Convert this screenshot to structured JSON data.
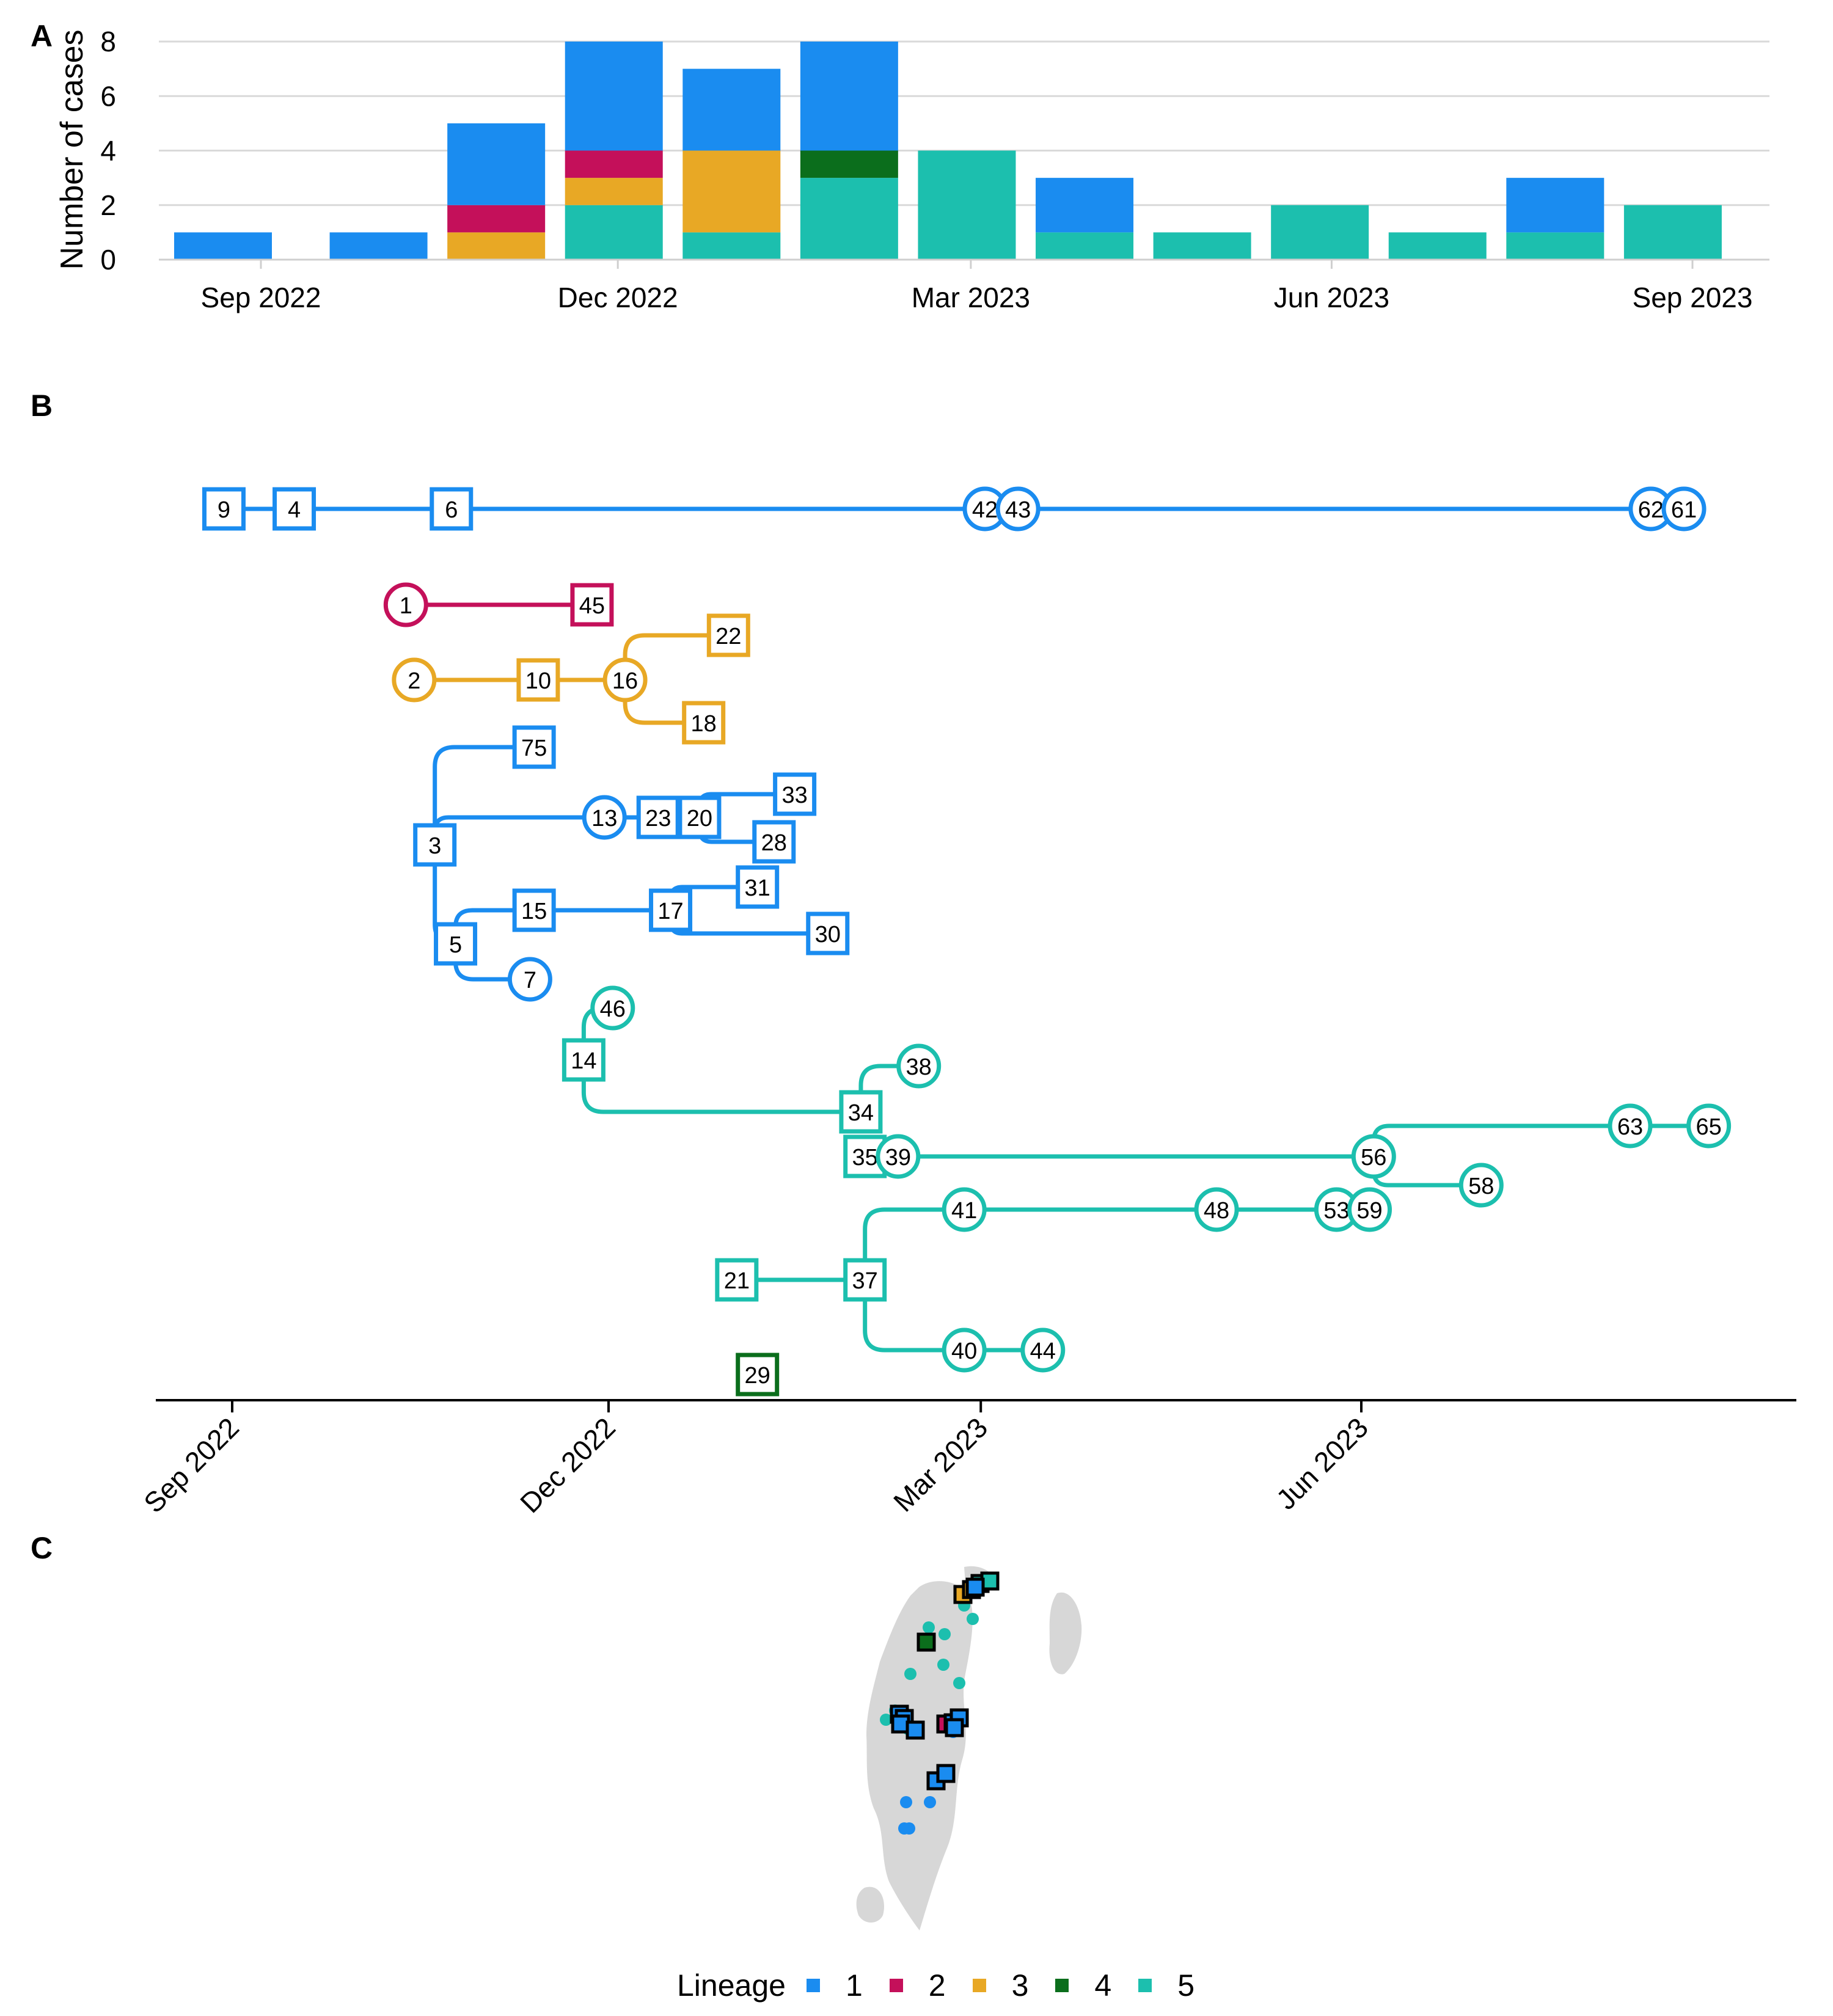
{
  "panels": {
    "a": "A",
    "b": "B",
    "c": "C"
  },
  "colors": {
    "lineage_1": "#1a8cf0",
    "lineage_2": "#c4105a",
    "lineage_3": "#e8a825",
    "lineage_4": "#0b6e1c",
    "lineage_5": "#1cbfae",
    "land": "#d7d7d7",
    "grid": "#d9d9d9"
  },
  "chart_data": [
    {
      "type": "bar",
      "stacked": true,
      "ylabel": "Number of cases",
      "ylim": [
        0,
        8
      ],
      "yticks": [
        "0",
        "2",
        "4",
        "6",
        "8"
      ],
      "xtick_labels": [
        "Sep 2022",
        "Dec 2022",
        "Mar 2023",
        "Jun 2023",
        "Sep 2023"
      ],
      "categories": [
        "2022-09-01",
        "2022-10-01",
        "2022-10-31",
        "2022-11-30",
        "2022-12-30",
        "2023-01-29",
        "2023-02-28",
        "2023-03-30",
        "2023-04-29",
        "2023-05-29",
        "2023-06-28",
        "2023-07-28",
        "2023-08-27"
      ],
      "series": [
        {
          "lineage": "5",
          "values": [
            0,
            0,
            0,
            2,
            1,
            3,
            4,
            1,
            1,
            2,
            1,
            1,
            2
          ]
        },
        {
          "lineage": "4",
          "values": [
            0,
            0,
            0,
            0,
            0,
            1,
            0,
            0,
            0,
            0,
            0,
            0,
            0
          ]
        },
        {
          "lineage": "3",
          "values": [
            0,
            0,
            1,
            1,
            3,
            0,
            0,
            0,
            0,
            0,
            0,
            0,
            0
          ]
        },
        {
          "lineage": "2",
          "values": [
            0,
            0,
            1,
            1,
            0,
            0,
            0,
            0,
            0,
            0,
            0,
            0,
            0
          ]
        },
        {
          "lineage": "1",
          "values": [
            1,
            1,
            3,
            4,
            3,
            4,
            0,
            2,
            0,
            0,
            0,
            2,
            0
          ]
        }
      ],
      "grid": true
    },
    {
      "type": "transmission-tree",
      "xtick_labels": [
        "Sep 2022",
        "Dec 2022",
        "Mar 2023",
        "Jun 2023"
      ],
      "nodes": [
        {
          "id": "9",
          "date": "2022-08-30",
          "lineage": 1,
          "shape": "square"
        },
        {
          "id": "4",
          "date": "2022-09-16",
          "lineage": 1,
          "shape": "square"
        },
        {
          "id": "6",
          "date": "2022-10-24",
          "lineage": 1,
          "shape": "square"
        },
        {
          "id": "42",
          "date": "2023-03-02",
          "lineage": 1,
          "shape": "circle"
        },
        {
          "id": "43",
          "date": "2023-03-10",
          "lineage": 1,
          "shape": "circle"
        },
        {
          "id": "62",
          "date": "2023-08-10",
          "lineage": 1,
          "shape": "circle"
        },
        {
          "id": "61",
          "date": "2023-08-18",
          "lineage": 1,
          "shape": "circle"
        },
        {
          "id": "1",
          "date": "2022-10-13",
          "lineage": 2,
          "shape": "circle"
        },
        {
          "id": "45",
          "date": "2022-11-27",
          "lineage": 2,
          "shape": "square"
        },
        {
          "id": "2",
          "date": "2022-10-15",
          "lineage": 3,
          "shape": "circle"
        },
        {
          "id": "10",
          "date": "2022-11-14",
          "lineage": 3,
          "shape": "square"
        },
        {
          "id": "16",
          "date": "2022-12-05",
          "lineage": 3,
          "shape": "circle"
        },
        {
          "id": "22",
          "date": "2022-12-30",
          "lineage": 3,
          "shape": "square"
        },
        {
          "id": "18",
          "date": "2022-12-24",
          "lineage": 3,
          "shape": "square"
        },
        {
          "id": "3",
          "date": "2022-10-20",
          "lineage": 1,
          "shape": "square"
        },
        {
          "id": "75",
          "date": "2022-11-13",
          "lineage": 1,
          "shape": "square"
        },
        {
          "id": "13",
          "date": "2022-11-30",
          "lineage": 1,
          "shape": "circle"
        },
        {
          "id": "23",
          "date": "2022-12-13",
          "lineage": 1,
          "shape": "square"
        },
        {
          "id": "20",
          "date": "2022-12-23",
          "lineage": 1,
          "shape": "square"
        },
        {
          "id": "33",
          "date": "2023-01-15",
          "lineage": 1,
          "shape": "square"
        },
        {
          "id": "28",
          "date": "2023-01-10",
          "lineage": 1,
          "shape": "square"
        },
        {
          "id": "5",
          "date": "2022-10-25",
          "lineage": 1,
          "shape": "square"
        },
        {
          "id": "15",
          "date": "2022-11-13",
          "lineage": 1,
          "shape": "square"
        },
        {
          "id": "17",
          "date": "2022-12-16",
          "lineage": 1,
          "shape": "square"
        },
        {
          "id": "31",
          "date": "2023-01-06",
          "lineage": 1,
          "shape": "square"
        },
        {
          "id": "30",
          "date": "2023-01-23",
          "lineage": 1,
          "shape": "square"
        },
        {
          "id": "7",
          "date": "2022-11-12",
          "lineage": 1,
          "shape": "circle"
        },
        {
          "id": "46",
          "date": "2022-12-02",
          "lineage": 5,
          "shape": "circle"
        },
        {
          "id": "14",
          "date": "2022-11-25",
          "lineage": 5,
          "shape": "square"
        },
        {
          "id": "34",
          "date": "2023-01-31",
          "lineage": 5,
          "shape": "square"
        },
        {
          "id": "38",
          "date": "2023-02-14",
          "lineage": 5,
          "shape": "circle"
        },
        {
          "id": "35",
          "date": "2023-02-01",
          "lineage": 5,
          "shape": "square"
        },
        {
          "id": "39",
          "date": "2023-02-09",
          "lineage": 5,
          "shape": "circle"
        },
        {
          "id": "56",
          "date": "2023-06-04",
          "lineage": 5,
          "shape": "circle"
        },
        {
          "id": "58",
          "date": "2023-06-30",
          "lineage": 5,
          "shape": "circle"
        },
        {
          "id": "63",
          "date": "2023-08-05",
          "lineage": 5,
          "shape": "circle"
        },
        {
          "id": "65",
          "date": "2023-08-24",
          "lineage": 5,
          "shape": "circle"
        },
        {
          "id": "41",
          "date": "2023-02-25",
          "lineage": 5,
          "shape": "circle"
        },
        {
          "id": "48",
          "date": "2023-04-27",
          "lineage": 5,
          "shape": "circle"
        },
        {
          "id": "53",
          "date": "2023-05-26",
          "lineage": 5,
          "shape": "circle"
        },
        {
          "id": "59",
          "date": "2023-06-03",
          "lineage": 5,
          "shape": "circle"
        },
        {
          "id": "21",
          "date": "2023-01-01",
          "lineage": 5,
          "shape": "square"
        },
        {
          "id": "37",
          "date": "2023-02-01",
          "lineage": 5,
          "shape": "square"
        },
        {
          "id": "40",
          "date": "2023-02-25",
          "lineage": 5,
          "shape": "circle"
        },
        {
          "id": "44",
          "date": "2023-03-16",
          "lineage": 5,
          "shape": "circle"
        },
        {
          "id": "29",
          "date": "2023-01-06",
          "lineage": 4,
          "shape": "square"
        }
      ],
      "edges": [
        [
          "9",
          "4"
        ],
        [
          "4",
          "6"
        ],
        [
          "6",
          "42"
        ],
        [
          "42",
          "43"
        ],
        [
          "43",
          "62"
        ],
        [
          "62",
          "61"
        ],
        [
          "1",
          "45"
        ],
        [
          "2",
          "10"
        ],
        [
          "10",
          "16"
        ],
        [
          "16",
          "22"
        ],
        [
          "16",
          "18"
        ],
        [
          "3",
          "75"
        ],
        [
          "3",
          "13"
        ],
        [
          "13",
          "23"
        ],
        [
          "23",
          "20"
        ],
        [
          "20",
          "33"
        ],
        [
          "20",
          "28"
        ],
        [
          "3",
          "5"
        ],
        [
          "5",
          "15"
        ],
        [
          "15",
          "17"
        ],
        [
          "17",
          "31"
        ],
        [
          "17",
          "30"
        ],
        [
          "5",
          "7"
        ],
        [
          "14",
          "46"
        ],
        [
          "14",
          "34"
        ],
        [
          "34",
          "38"
        ],
        [
          "35",
          "39"
        ],
        [
          "39",
          "56"
        ],
        [
          "56",
          "63"
        ],
        [
          "63",
          "65"
        ],
        [
          "56",
          "58"
        ],
        [
          "21",
          "37"
        ],
        [
          "37",
          "41"
        ],
        [
          "41",
          "48"
        ],
        [
          "48",
          "53"
        ],
        [
          "53",
          "59"
        ],
        [
          "37",
          "40"
        ],
        [
          "40",
          "44"
        ]
      ]
    },
    {
      "type": "map",
      "legend_title": "Lineage",
      "legend_items": [
        "1",
        "2",
        "3",
        "4",
        "5"
      ]
    }
  ]
}
